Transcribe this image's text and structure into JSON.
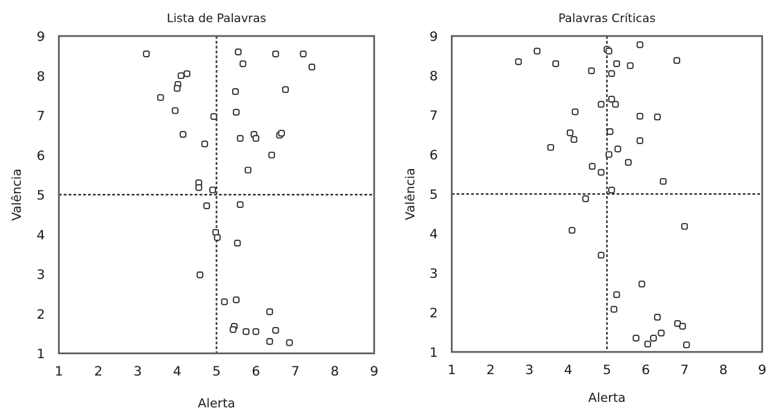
{
  "chart_data": [
    {
      "type": "scatter",
      "title": "Lista de Palavras",
      "xlabel": "Alerta",
      "ylabel": "Valência",
      "xlim": [
        1,
        9
      ],
      "ylim": [
        1,
        9
      ],
      "xticks": [
        "1",
        "2",
        "3",
        "4",
        "5",
        "6",
        "7",
        "8",
        "9"
      ],
      "yticks": [
        "1",
        "2",
        "3",
        "4",
        "5",
        "6",
        "7",
        "8",
        "9"
      ],
      "reference_lines": {
        "x": 5,
        "y": 5
      },
      "grid": false,
      "points": [
        [
          3.22,
          8.55
        ],
        [
          5.55,
          8.6
        ],
        [
          5.67,
          8.3
        ],
        [
          6.5,
          8.55
        ],
        [
          7.2,
          8.55
        ],
        [
          7.42,
          8.22
        ],
        [
          4.25,
          8.05
        ],
        [
          4.1,
          8.0
        ],
        [
          4.02,
          7.78
        ],
        [
          4.0,
          7.68
        ],
        [
          3.58,
          7.45
        ],
        [
          3.95,
          7.12
        ],
        [
          5.48,
          7.6
        ],
        [
          6.75,
          7.65
        ],
        [
          5.5,
          7.08
        ],
        [
          4.93,
          6.97
        ],
        [
          4.15,
          6.52
        ],
        [
          5.6,
          6.42
        ],
        [
          4.7,
          6.28
        ],
        [
          5.95,
          6.52
        ],
        [
          6.0,
          6.42
        ],
        [
          6.6,
          6.5
        ],
        [
          6.65,
          6.55
        ],
        [
          6.4,
          6.0
        ],
        [
          5.8,
          5.62
        ],
        [
          4.55,
          5.3
        ],
        [
          4.55,
          5.18
        ],
        [
          4.9,
          5.12
        ],
        [
          5.6,
          4.75
        ],
        [
          4.75,
          4.72
        ],
        [
          4.98,
          4.05
        ],
        [
          5.02,
          3.92
        ],
        [
          5.53,
          3.78
        ],
        [
          4.58,
          2.98
        ],
        [
          5.2,
          2.3
        ],
        [
          5.5,
          2.35
        ],
        [
          6.35,
          2.05
        ],
        [
          5.45,
          1.68
        ],
        [
          5.42,
          1.6
        ],
        [
          5.75,
          1.55
        ],
        [
          6.0,
          1.55
        ],
        [
          6.5,
          1.58
        ],
        [
          6.35,
          1.3
        ],
        [
          6.85,
          1.27
        ]
      ]
    },
    {
      "type": "scatter",
      "title": "Palavras Críticas",
      "xlabel": "Alerta",
      "ylabel": "Valência",
      "xlim": [
        1,
        9
      ],
      "ylim": [
        1,
        9
      ],
      "xticks": [
        "1",
        "2",
        "3",
        "4",
        "5",
        "6",
        "7",
        "8",
        "9"
      ],
      "yticks": [
        "1",
        "2",
        "3",
        "4",
        "5",
        "6",
        "7",
        "8",
        "9"
      ],
      "reference_lines": {
        "x": 5,
        "y": 5
      },
      "grid": false,
      "points": [
        [
          2.72,
          8.35
        ],
        [
          3.2,
          8.62
        ],
        [
          3.68,
          8.3
        ],
        [
          4.6,
          8.12
        ],
        [
          5.0,
          8.66
        ],
        [
          5.05,
          8.62
        ],
        [
          5.85,
          8.78
        ],
        [
          5.25,
          8.3
        ],
        [
          5.6,
          8.25
        ],
        [
          5.12,
          8.05
        ],
        [
          6.8,
          8.38
        ],
        [
          5.12,
          7.4
        ],
        [
          5.22,
          7.27
        ],
        [
          4.85,
          7.27
        ],
        [
          4.18,
          7.08
        ],
        [
          5.85,
          6.97
        ],
        [
          6.3,
          6.95
        ],
        [
          5.08,
          6.58
        ],
        [
          4.05,
          6.55
        ],
        [
          4.15,
          6.38
        ],
        [
          5.85,
          6.35
        ],
        [
          3.55,
          6.18
        ],
        [
          5.28,
          6.14
        ],
        [
          5.05,
          6.0
        ],
        [
          4.62,
          5.7
        ],
        [
          4.85,
          5.55
        ],
        [
          5.55,
          5.8
        ],
        [
          6.45,
          5.32
        ],
        [
          5.12,
          5.1
        ],
        [
          4.45,
          4.88
        ],
        [
          7.0,
          4.18
        ],
        [
          4.1,
          4.08
        ],
        [
          4.85,
          3.45
        ],
        [
          5.9,
          2.72
        ],
        [
          5.25,
          2.45
        ],
        [
          5.18,
          2.08
        ],
        [
          6.3,
          1.88
        ],
        [
          6.82,
          1.72
        ],
        [
          6.95,
          1.65
        ],
        [
          6.4,
          1.48
        ],
        [
          6.2,
          1.35
        ],
        [
          5.75,
          1.35
        ],
        [
          6.05,
          1.2
        ],
        [
          7.05,
          1.18
        ]
      ]
    }
  ]
}
